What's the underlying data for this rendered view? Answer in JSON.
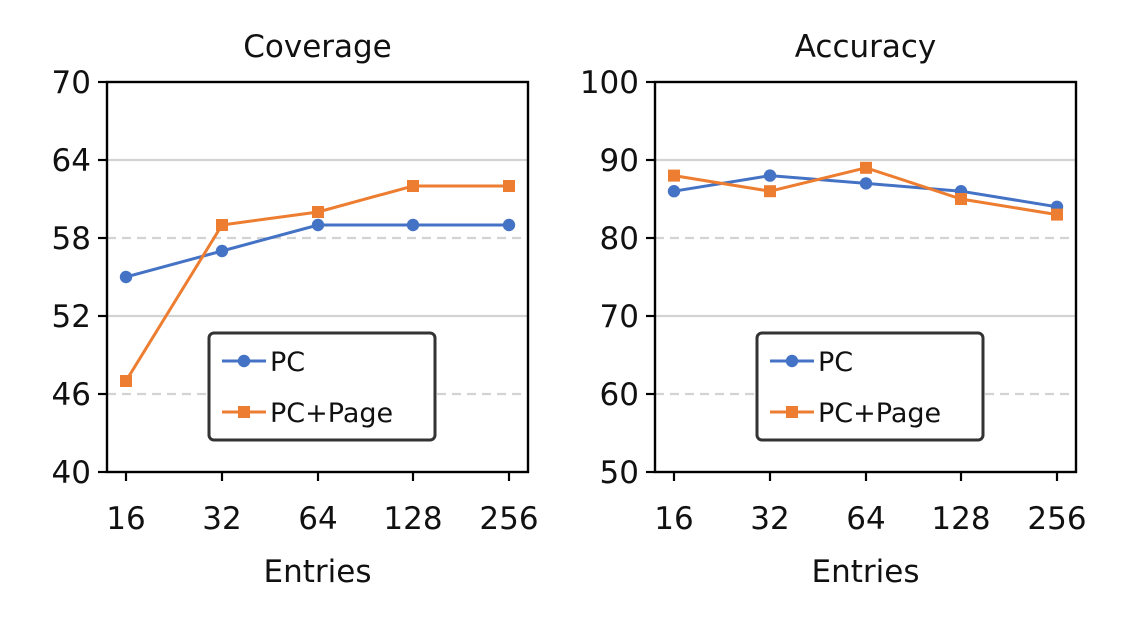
{
  "chart_data": [
    {
      "type": "line",
      "title": "Coverage",
      "xlabel": "Entries",
      "ylabel": "",
      "categories": [
        "16",
        "32",
        "64",
        "128",
        "256"
      ],
      "ylim": [
        40,
        70
      ],
      "yticks": [
        "40",
        "46",
        "52",
        "58",
        "64",
        "70"
      ],
      "grid": {
        "solid": [
          52,
          64
        ],
        "dashed": [
          46,
          58
        ]
      },
      "legend_position": "lower-center",
      "series": [
        {
          "name": "PC",
          "values": [
            55,
            57,
            59,
            59,
            59
          ],
          "color": "#4472c4",
          "marker": "circle"
        },
        {
          "name": "PC+Page",
          "values": [
            47,
            59,
            60,
            62,
            62
          ],
          "color": "#ed7d31",
          "marker": "square"
        }
      ]
    },
    {
      "type": "line",
      "title": "Accuracy",
      "xlabel": "Entries",
      "ylabel": "",
      "categories": [
        "16",
        "32",
        "64",
        "128",
        "256"
      ],
      "ylim": [
        50,
        100
      ],
      "yticks": [
        "50",
        "60",
        "70",
        "80",
        "90",
        "100"
      ],
      "grid": {
        "solid": [
          70,
          90
        ],
        "dashed": [
          60,
          80
        ]
      },
      "legend_position": "lower-center",
      "series": [
        {
          "name": "PC",
          "values": [
            86,
            88,
            87,
            86,
            84
          ],
          "color": "#4472c4",
          "marker": "circle"
        },
        {
          "name": "PC+Page",
          "values": [
            88,
            86,
            89,
            85,
            83
          ],
          "color": "#ed7d31",
          "marker": "square"
        }
      ]
    }
  ]
}
